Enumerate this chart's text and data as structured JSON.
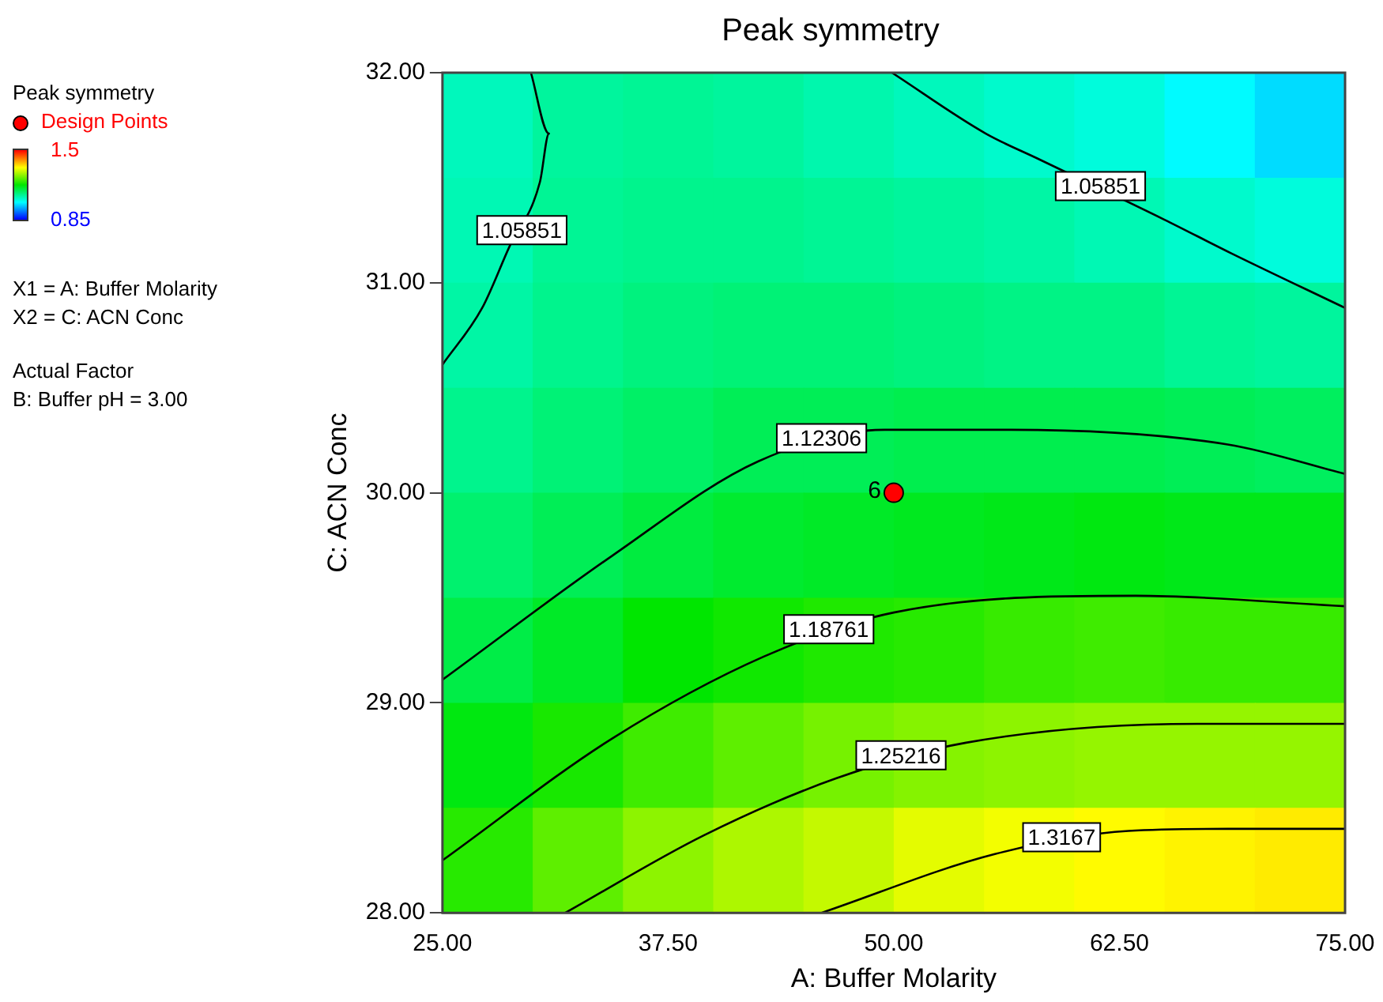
{
  "chart_data": {
    "type": "heatmap",
    "title": "Peak symmetry",
    "xlabel": "A: Buffer Molarity",
    "ylabel": "C: ACN Conc",
    "legend_title": "Peak symmetry",
    "legend": "left",
    "grid": false,
    "xlim": [
      25,
      75
    ],
    "ylim": [
      28,
      32
    ],
    "xticks": [
      {
        "value": 25,
        "label": "25.00"
      },
      {
        "value": 37.5,
        "label": "37.50"
      },
      {
        "value": 50,
        "label": "50.00"
      },
      {
        "value": 62.5,
        "label": "62.50"
      },
      {
        "value": 75,
        "label": "75.00"
      }
    ],
    "yticks": [
      {
        "value": 28,
        "label": "28.00"
      },
      {
        "value": 29,
        "label": "29.00"
      },
      {
        "value": 30,
        "label": "30.00"
      },
      {
        "value": 31,
        "label": "31.00"
      },
      {
        "value": 32,
        "label": "32.00"
      }
    ],
    "clim": [
      0.85,
      1.5
    ],
    "cticks": [
      0.85,
      1.5
    ],
    "cells": [
      [
        1.055,
        1.075,
        1.08,
        1.075,
        1.065,
        1.055,
        1.045,
        1.035,
        1.01,
        0.99
      ],
      [
        1.06,
        1.08,
        1.085,
        1.085,
        1.08,
        1.075,
        1.07,
        1.06,
        1.045,
        1.035
      ],
      [
        1.07,
        1.085,
        1.095,
        1.1,
        1.1,
        1.095,
        1.09,
        1.09,
        1.08,
        1.075
      ],
      [
        1.085,
        1.1,
        1.11,
        1.12,
        1.12,
        1.125,
        1.125,
        1.125,
        1.12,
        1.115
      ],
      [
        1.105,
        1.12,
        1.135,
        1.145,
        1.15,
        1.155,
        1.16,
        1.165,
        1.16,
        1.16
      ],
      [
        1.13,
        1.15,
        1.175,
        1.185,
        1.195,
        1.2,
        1.21,
        1.215,
        1.21,
        1.21
      ],
      [
        1.165,
        1.19,
        1.215,
        1.235,
        1.25,
        1.26,
        1.265,
        1.27,
        1.27,
        1.27
      ],
      [
        1.2,
        1.235,
        1.265,
        1.285,
        1.3,
        1.32,
        1.33,
        1.34,
        1.345,
        1.35
      ]
    ],
    "series": [
      {
        "type": "line",
        "color": "#000000",
        "x": [
          29.9,
          30.9,
          30.4,
          28.7,
          27.2,
          25
        ],
        "values": [
          32,
          31.71,
          31.48,
          31.17,
          30.88,
          30.61
        ]
      },
      {
        "type": "line",
        "color": "#000000",
        "x": [
          49.9,
          55.1,
          58,
          65,
          68.7,
          75
        ],
        "values": [
          32,
          31.71,
          31.59,
          31.3,
          31.14,
          30.88
        ]
      },
      {
        "type": "line",
        "color": "#000000",
        "x": [
          25,
          34.4,
          42.5,
          49.5,
          56.5,
          68.5,
          75
        ],
        "values": [
          29.11,
          29.7,
          30.15,
          30.3,
          30.3,
          30.23,
          30.09
        ]
      },
      {
        "type": "line",
        "color": "#000000",
        "x": [
          25,
          34.4,
          42.8,
          50,
          63.4,
          75
        ],
        "values": [
          28.25,
          28.83,
          29.22,
          29.43,
          29.51,
          29.46
        ]
      },
      {
        "type": "line",
        "color": "#000000",
        "x": [
          31.8,
          39.5,
          46.8,
          54,
          66.8,
          75
        ],
        "values": [
          28,
          28.37,
          28.64,
          28.81,
          28.9,
          28.9
        ]
      },
      {
        "type": "line",
        "color": "#000000",
        "x": [
          46,
          55.6,
          63,
          68.5,
          75
        ],
        "values": [
          28,
          28.28,
          28.39,
          28.4,
          28.4
        ]
      },
      {
        "type": "scatter",
        "name": "Design Points",
        "color": "#ff0000",
        "marker": "circle",
        "x": [
          50
        ],
        "values": [
          30
        ]
      }
    ],
    "annotations": [
      {
        "text": "1.05851",
        "x": 29.4,
        "y": 31.25
      },
      {
        "text": "1.05851",
        "x": 61.45,
        "y": 31.46
      },
      {
        "text": "1.12306",
        "x": 46,
        "y": 30.26
      },
      {
        "text": "1.18761",
        "x": 46.4,
        "y": 29.35
      },
      {
        "text": "1.25216",
        "x": 50.4,
        "y": 28.75
      },
      {
        "text": "1.3167",
        "x": 59.3,
        "y": 28.36
      },
      {
        "text": "6",
        "x": 50,
        "y": 30
      },
      "X1 = A: Buffer Molarity",
      "X2 = C: ACN Conc",
      "Actual Factor",
      "B: Buffer pH = 3.00"
    ]
  }
}
